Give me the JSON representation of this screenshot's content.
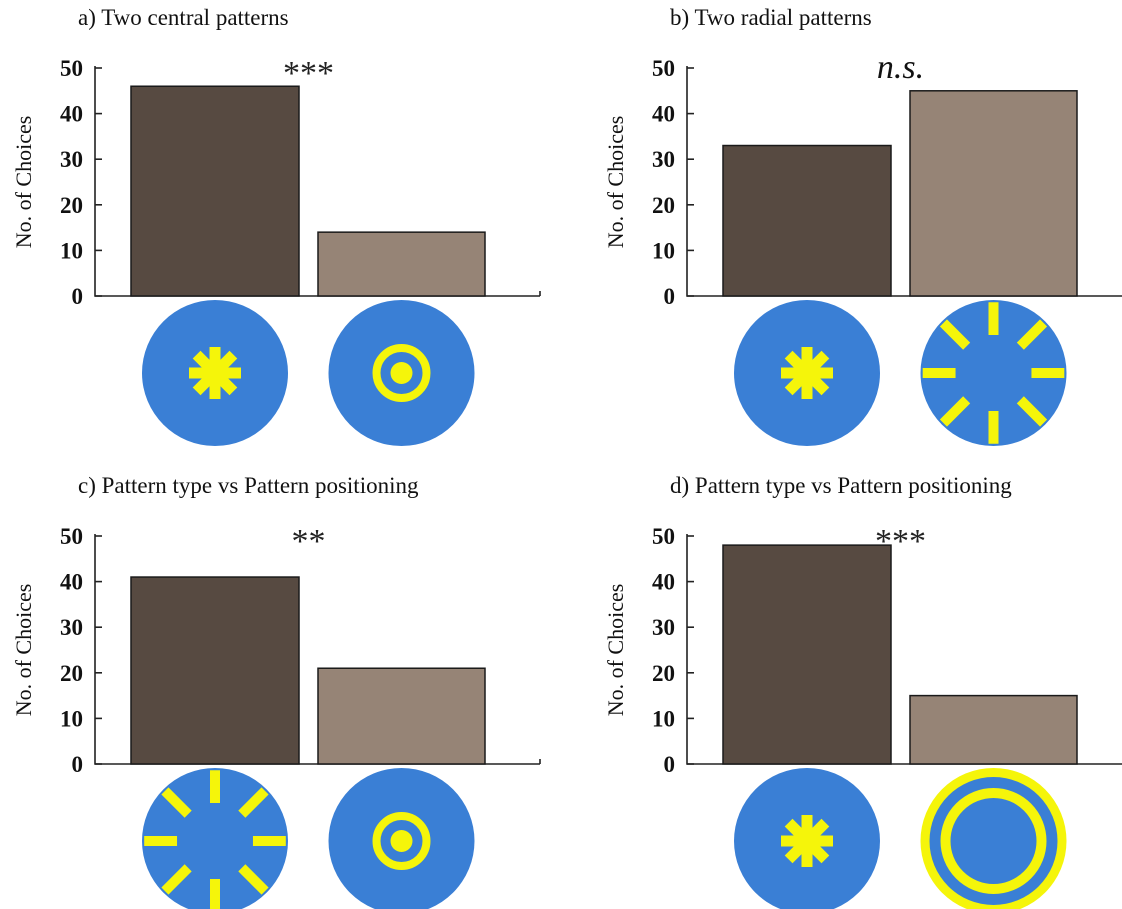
{
  "colors": {
    "bar_dark": "#574a41",
    "bar_light": "#968476",
    "disc_blue": "#3a7fd5",
    "pattern_yellow": "#f5f50a"
  },
  "chart_data": [
    {
      "type": "bar",
      "title": "a) Two central patterns",
      "ylabel": "No. of Choices",
      "ylim": [
        0,
        50
      ],
      "yticks": [
        0,
        10,
        20,
        30,
        40,
        50
      ],
      "categories": [
        "central-star-icon",
        "central-bullseye-icon"
      ],
      "values": [
        46,
        14
      ],
      "significance": "***"
    },
    {
      "type": "bar",
      "title": "b) Two radial patterns",
      "ylabel": "No. of Choices",
      "ylim": [
        0,
        50
      ],
      "yticks": [
        0,
        10,
        20,
        30,
        40,
        50
      ],
      "categories": [
        "central-star-icon",
        "radial-dashes-icon"
      ],
      "values": [
        33,
        45
      ],
      "significance": "n.s."
    },
    {
      "type": "bar",
      "title": "c) Pattern type vs Pattern positioning",
      "ylabel": "No. of Choices",
      "ylim": [
        0,
        50
      ],
      "yticks": [
        0,
        10,
        20,
        30,
        40,
        50
      ],
      "categories": [
        "radial-dashes-icon",
        "central-bullseye-icon"
      ],
      "values": [
        41,
        21
      ],
      "significance": "**"
    },
    {
      "type": "bar",
      "title": "d) Pattern type vs Pattern positioning",
      "ylabel": "No. of Choices",
      "ylim": [
        0,
        50
      ],
      "yticks": [
        0,
        10,
        20,
        30,
        40,
        50
      ],
      "categories": [
        "central-star-icon",
        "peripheral-rings-icon"
      ],
      "values": [
        48,
        15
      ],
      "significance": "***"
    }
  ]
}
